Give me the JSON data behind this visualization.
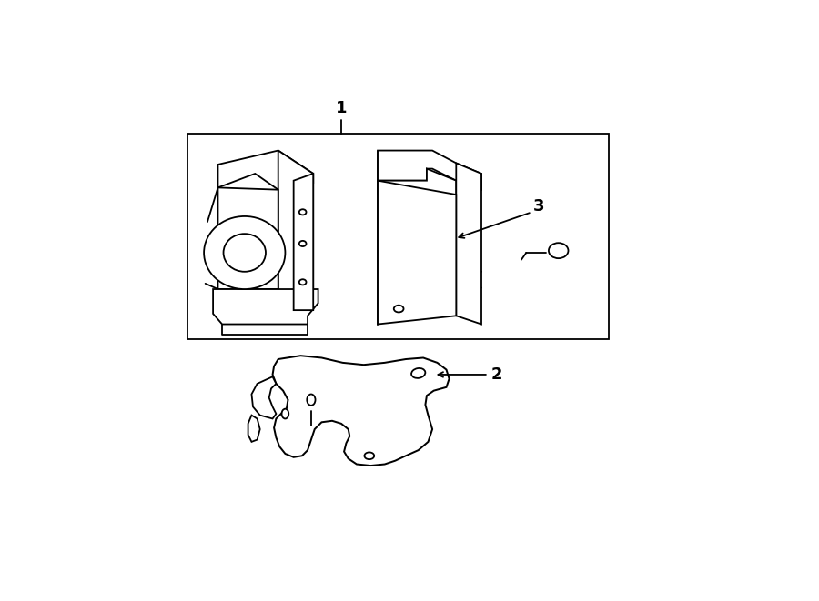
{
  "bg_color": "#ffffff",
  "line_color": "#000000",
  "lw": 1.3,
  "fig_width": 9.0,
  "fig_height": 6.61,
  "label_1": "1",
  "label_2": "2",
  "label_3": "3"
}
